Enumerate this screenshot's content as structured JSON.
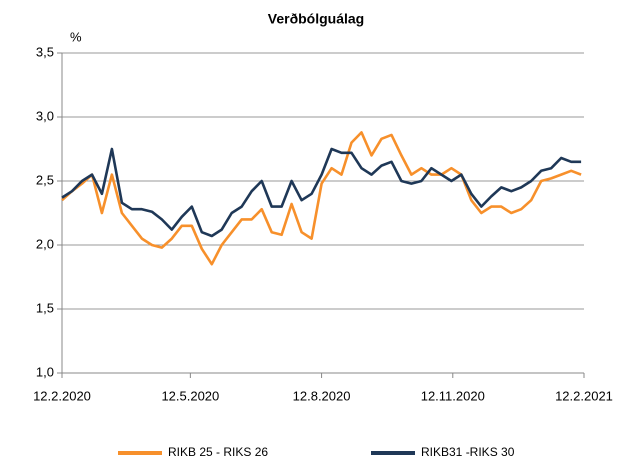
{
  "chart_data": {
    "type": "line",
    "title": "Verðbólguálag",
    "y_label": "%",
    "x": [
      "2020-02-12",
      "2020-02-19",
      "2020-02-26",
      "2020-03-04",
      "2020-03-11",
      "2020-03-18",
      "2020-03-25",
      "2020-04-01",
      "2020-04-08",
      "2020-04-15",
      "2020-04-22",
      "2020-04-29",
      "2020-05-06",
      "2020-05-13",
      "2020-05-20",
      "2020-05-27",
      "2020-06-03",
      "2020-06-10",
      "2020-06-17",
      "2020-06-24",
      "2020-07-01",
      "2020-07-08",
      "2020-07-15",
      "2020-07-22",
      "2020-07-29",
      "2020-08-05",
      "2020-08-12",
      "2020-08-19",
      "2020-08-26",
      "2020-09-02",
      "2020-09-09",
      "2020-09-16",
      "2020-09-23",
      "2020-09-30",
      "2020-10-07",
      "2020-10-14",
      "2020-10-21",
      "2020-10-28",
      "2020-11-04",
      "2020-11-11",
      "2020-11-18",
      "2020-11-25",
      "2020-12-02",
      "2020-12-09",
      "2020-12-16",
      "2020-12-23",
      "2020-12-30",
      "2021-01-06",
      "2021-01-13",
      "2021-01-20",
      "2021-01-27",
      "2021-02-03",
      "2021-02-10"
    ],
    "series": [
      {
        "name": "RIKB 25 - RIKS 26",
        "color": "#f7902b",
        "values": [
          2.35,
          2.42,
          2.48,
          2.55,
          2.25,
          2.55,
          2.25,
          2.15,
          2.05,
          2.0,
          1.98,
          2.05,
          2.15,
          2.15,
          1.97,
          1.85,
          2.0,
          2.1,
          2.2,
          2.2,
          2.28,
          2.1,
          2.08,
          2.32,
          2.1,
          2.05,
          2.48,
          2.6,
          2.55,
          2.8,
          2.88,
          2.7,
          2.83,
          2.86,
          2.7,
          2.55,
          2.6,
          2.55,
          2.55,
          2.6,
          2.55,
          2.35,
          2.25,
          2.3,
          2.3,
          2.25,
          2.28,
          2.35,
          2.5,
          2.52,
          2.55,
          2.58,
          2.55
        ]
      },
      {
        "name": "RIKB31 -RIKS 30",
        "color": "#1f3857",
        "values": [
          2.37,
          2.42,
          2.5,
          2.55,
          2.4,
          2.75,
          2.33,
          2.28,
          2.28,
          2.26,
          2.2,
          2.12,
          2.22,
          2.3,
          2.1,
          2.07,
          2.12,
          2.25,
          2.3,
          2.42,
          2.5,
          2.3,
          2.3,
          2.5,
          2.35,
          2.4,
          2.55,
          2.75,
          2.72,
          2.72,
          2.6,
          2.55,
          2.62,
          2.65,
          2.5,
          2.48,
          2.5,
          2.6,
          2.55,
          2.5,
          2.55,
          2.4,
          2.3,
          2.38,
          2.45,
          2.42,
          2.45,
          2.5,
          2.58,
          2.6,
          2.68,
          2.65,
          2.65
        ]
      }
    ],
    "xlim": [
      "2020-02-12",
      "2021-02-12"
    ],
    "xticks": [
      {
        "value": "2020-02-12",
        "label": "12.2.2020"
      },
      {
        "value": "2020-05-12",
        "label": "12.5.2020"
      },
      {
        "value": "2020-08-12",
        "label": "12.8.2020"
      },
      {
        "value": "2020-11-12",
        "label": "12.11.2020"
      },
      {
        "value": "2021-02-12",
        "label": "12.2.2021"
      }
    ],
    "ylim": [
      1,
      3.5
    ],
    "yticks": [
      {
        "value": 1,
        "label": "1,0"
      },
      {
        "value": 1.5,
        "label": "1,5"
      },
      {
        "value": 2,
        "label": "2,0"
      },
      {
        "value": 2.5,
        "label": "2,5"
      },
      {
        "value": 3,
        "label": "3,0"
      },
      {
        "value": 3.5,
        "label": "3,5"
      }
    ],
    "grid": true,
    "legend": "bottom"
  }
}
